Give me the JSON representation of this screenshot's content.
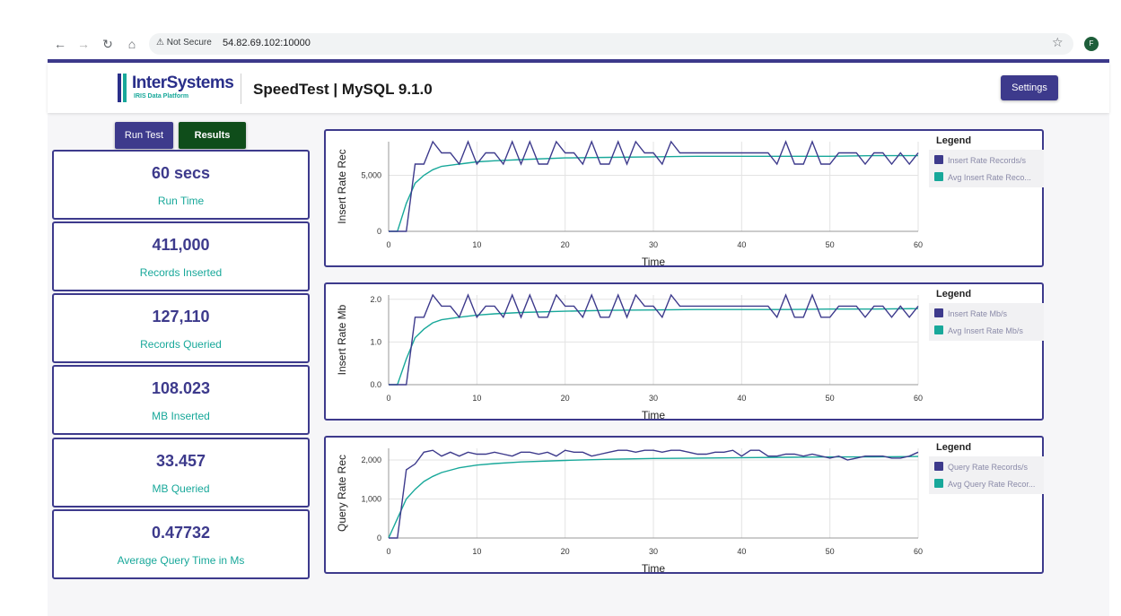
{
  "browser": {
    "security_label": "Not Secure",
    "url": "54.82.69.102:10000",
    "profile_initial": "F"
  },
  "header": {
    "logo_text": "InterSystems",
    "logo_sub": "IRIS Data Platform",
    "title": "SpeedTest | MySQL 9.1.0",
    "settings_label": "Settings"
  },
  "actions": {
    "run_label": "Run Test",
    "results_label": "Results"
  },
  "stats": [
    {
      "value": "60 secs",
      "label": "Run Time"
    },
    {
      "value": "411,000",
      "label": "Records Inserted"
    },
    {
      "value": "127,110",
      "label": "Records Queried"
    },
    {
      "value": "108.023",
      "label": "MB Inserted"
    },
    {
      "value": "33.457",
      "label": "MB Queried"
    },
    {
      "value": "0.47732",
      "label": "Average Query Time in Ms"
    }
  ],
  "colors": {
    "primary": "#3d3a8c",
    "accent": "#18a89a",
    "results_green": "#0f4d1a"
  },
  "chart_data": [
    {
      "type": "line",
      "ylabel": "Insert Rate Rec",
      "xlabel": "Time",
      "xlim": [
        0,
        60
      ],
      "ylim": [
        0,
        8000
      ],
      "yticks": [
        0,
        5000
      ],
      "ytick_labels": [
        "0",
        "5,000"
      ],
      "xticks": [
        0,
        10,
        20,
        30,
        40,
        50,
        60
      ],
      "legend_title": "Legend",
      "series": [
        {
          "name": "Insert Rate Records/s",
          "color": "#3d3a8c",
          "x": [
            0,
            1,
            2,
            3,
            4,
            5,
            6,
            7,
            8,
            9,
            10,
            11,
            12,
            13,
            14,
            15,
            16,
            17,
            18,
            19,
            20,
            21,
            22,
            23,
            24,
            25,
            26,
            27,
            28,
            29,
            30,
            31,
            32,
            33,
            34,
            35,
            36,
            37,
            38,
            39,
            40,
            41,
            42,
            43,
            44,
            45,
            46,
            47,
            48,
            49,
            50,
            51,
            52,
            53,
            54,
            55,
            56,
            57,
            58,
            59,
            60
          ],
          "values": [
            0,
            0,
            0,
            6000,
            6000,
            8000,
            7000,
            7000,
            6000,
            8000,
            6000,
            7000,
            7000,
            6000,
            8000,
            6000,
            8000,
            6000,
            6000,
            8000,
            7000,
            7000,
            6000,
            8000,
            6000,
            6000,
            8000,
            6000,
            8000,
            7000,
            7000,
            6000,
            8000,
            7000,
            7000,
            7000,
            7000,
            7000,
            7000,
            7000,
            7000,
            7000,
            7000,
            7000,
            6000,
            8000,
            6000,
            6000,
            8000,
            6000,
            6000,
            7000,
            7000,
            7000,
            6000,
            7000,
            7000,
            6000,
            7000,
            6000,
            7000
          ]
        },
        {
          "name": "Avg Insert Rate Records/s",
          "color": "#18a89a",
          "x": [
            0,
            1,
            2,
            3,
            4,
            5,
            6,
            8,
            10,
            12,
            15,
            20,
            25,
            30,
            35,
            40,
            45,
            50,
            55,
            60
          ],
          "values": [
            0,
            0,
            2500,
            4300,
            5000,
            5500,
            5800,
            6000,
            6200,
            6300,
            6400,
            6550,
            6600,
            6650,
            6700,
            6700,
            6700,
            6700,
            6750,
            6750
          ]
        }
      ]
    },
    {
      "type": "line",
      "ylabel": "Insert Rate Mb",
      "xlabel": "Time",
      "xlim": [
        0,
        60
      ],
      "ylim": [
        0,
        2.1
      ],
      "yticks": [
        0,
        1,
        2
      ],
      "ytick_labels": [
        "0.0",
        "1.0",
        "2.0"
      ],
      "xticks": [
        0,
        10,
        20,
        30,
        40,
        50,
        60
      ],
      "legend_title": "Legend",
      "series": [
        {
          "name": "Insert Rate Mb/s",
          "color": "#3d3a8c",
          "x": [
            0,
            1,
            2,
            3,
            4,
            5,
            6,
            7,
            8,
            9,
            10,
            11,
            12,
            13,
            14,
            15,
            16,
            17,
            18,
            19,
            20,
            21,
            22,
            23,
            24,
            25,
            26,
            27,
            28,
            29,
            30,
            31,
            32,
            33,
            34,
            35,
            36,
            37,
            38,
            39,
            40,
            41,
            42,
            43,
            44,
            45,
            46,
            47,
            48,
            49,
            50,
            51,
            52,
            53,
            54,
            55,
            56,
            57,
            58,
            59,
            60
          ],
          "values": [
            0,
            0,
            0,
            1.58,
            1.58,
            2.1,
            1.84,
            1.84,
            1.58,
            2.1,
            1.58,
            1.84,
            1.84,
            1.58,
            2.1,
            1.58,
            2.1,
            1.58,
            1.58,
            2.1,
            1.84,
            1.84,
            1.58,
            2.1,
            1.58,
            1.58,
            2.1,
            1.58,
            2.1,
            1.84,
            1.84,
            1.58,
            2.1,
            1.84,
            1.84,
            1.84,
            1.84,
            1.84,
            1.84,
            1.84,
            1.84,
            1.84,
            1.84,
            1.84,
            1.58,
            2.1,
            1.58,
            1.58,
            2.1,
            1.58,
            1.58,
            1.84,
            1.84,
            1.84,
            1.58,
            1.84,
            1.84,
            1.58,
            1.84,
            1.58,
            1.84
          ]
        },
        {
          "name": "Avg Insert Rate Mb/s",
          "color": "#18a89a",
          "x": [
            0,
            1,
            2,
            3,
            4,
            5,
            6,
            8,
            10,
            12,
            15,
            20,
            25,
            30,
            35,
            40,
            45,
            50,
            55,
            60
          ],
          "values": [
            0,
            0,
            0.6,
            1.1,
            1.3,
            1.45,
            1.52,
            1.58,
            1.63,
            1.66,
            1.69,
            1.72,
            1.74,
            1.75,
            1.76,
            1.76,
            1.76,
            1.77,
            1.77,
            1.78
          ]
        }
      ]
    },
    {
      "type": "line",
      "ylabel": "Query Rate Rec",
      "xlabel": "Time",
      "xlim": [
        0,
        60
      ],
      "ylim": [
        0,
        2300
      ],
      "yticks": [
        0,
        1000,
        2000
      ],
      "ytick_labels": [
        "0",
        "1,000",
        "2,000"
      ],
      "xticks": [
        0,
        10,
        20,
        30,
        40,
        50,
        60
      ],
      "legend_title": "Legend",
      "series": [
        {
          "name": "Query Rate Records/s",
          "color": "#3d3a8c",
          "x": [
            0,
            1,
            2,
            3,
            4,
            5,
            6,
            7,
            8,
            9,
            10,
            11,
            12,
            13,
            14,
            15,
            16,
            17,
            18,
            19,
            20,
            21,
            22,
            23,
            24,
            25,
            26,
            27,
            28,
            29,
            30,
            31,
            32,
            33,
            34,
            35,
            36,
            37,
            38,
            39,
            40,
            41,
            42,
            43,
            44,
            45,
            46,
            47,
            48,
            49,
            50,
            51,
            52,
            53,
            54,
            55,
            56,
            57,
            58,
            59,
            60
          ],
          "values": [
            0,
            0,
            1750,
            1900,
            2200,
            2250,
            2100,
            2200,
            2100,
            2200,
            2150,
            2150,
            2200,
            2150,
            2100,
            2200,
            2200,
            2150,
            2200,
            2100,
            2250,
            2200,
            2200,
            2100,
            2150,
            2200,
            2250,
            2250,
            2200,
            2250,
            2250,
            2200,
            2250,
            2250,
            2200,
            2150,
            2150,
            2200,
            2200,
            2250,
            2100,
            2250,
            2250,
            2100,
            2100,
            2150,
            2150,
            2100,
            2150,
            2100,
            2050,
            2100,
            2000,
            2050,
            2100,
            2100,
            2100,
            2050,
            2050,
            2100,
            2200
          ]
        },
        {
          "name": "Avg Query Rate Records/s",
          "color": "#18a89a",
          "x": [
            0,
            1,
            2,
            3,
            4,
            5,
            6,
            8,
            10,
            12,
            15,
            20,
            25,
            30,
            35,
            40,
            45,
            50,
            55,
            60
          ],
          "values": [
            0,
            500,
            1000,
            1250,
            1450,
            1580,
            1680,
            1800,
            1870,
            1910,
            1950,
            1990,
            2020,
            2040,
            2050,
            2060,
            2070,
            2080,
            2080,
            2090
          ]
        }
      ]
    }
  ]
}
